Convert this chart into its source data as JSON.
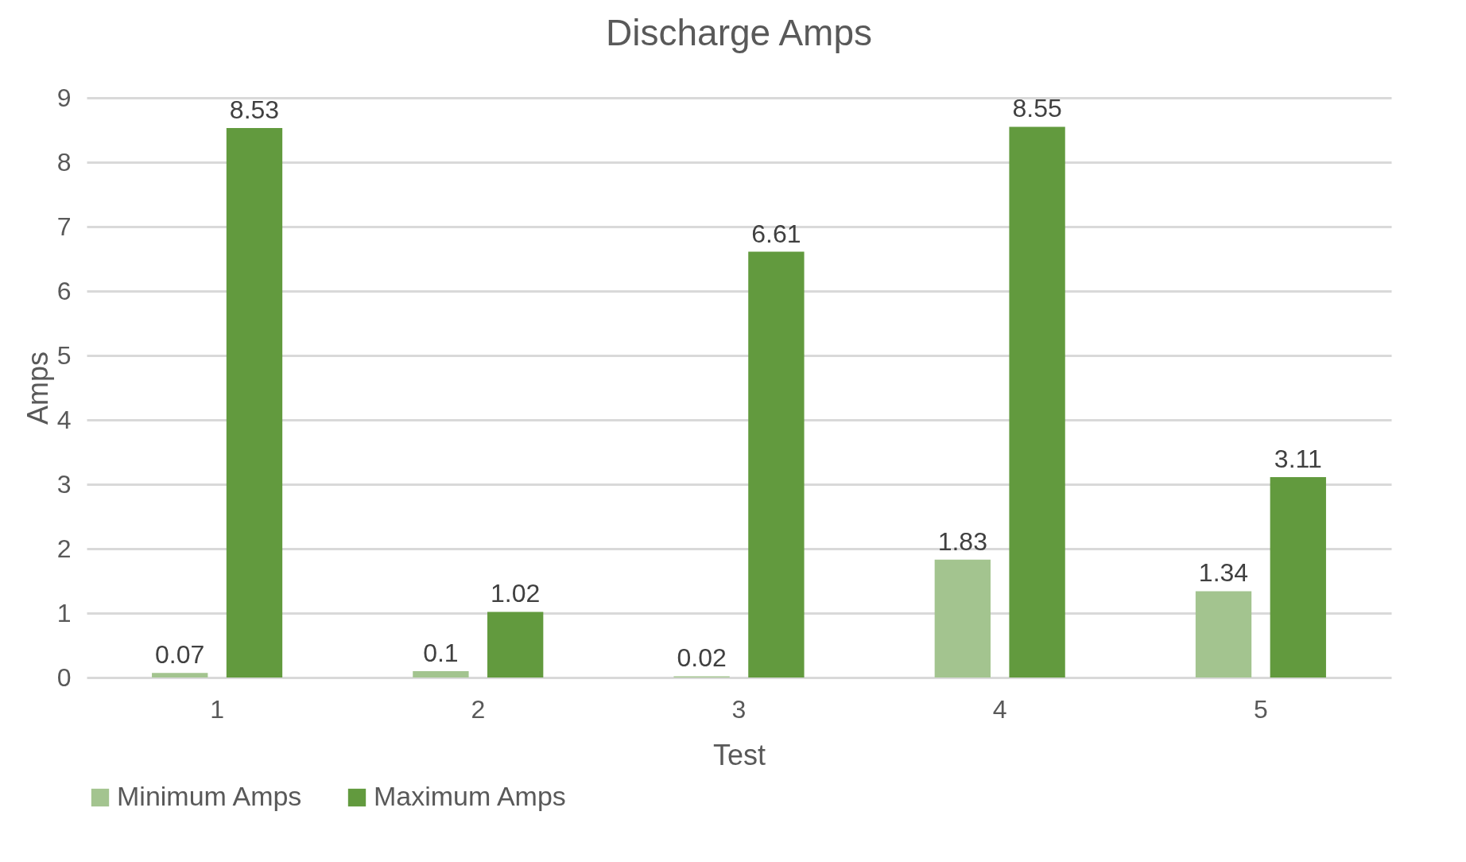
{
  "chart_data": {
    "type": "bar",
    "title": "Discharge Amps",
    "xlabel": "Test",
    "ylabel": "Amps",
    "categories": [
      "1",
      "2",
      "3",
      "4",
      "5"
    ],
    "series": [
      {
        "name": "Minimum Amps",
        "color": "#a3c48f",
        "values": [
          0.07,
          0.1,
          0.02,
          1.83,
          1.34
        ]
      },
      {
        "name": "Maximum Amps",
        "color": "#629a3e",
        "values": [
          8.53,
          1.02,
          6.61,
          8.55,
          3.11
        ]
      }
    ],
    "ylim": [
      0,
      9
    ],
    "yticks": [
      0,
      1,
      2,
      3,
      4,
      5,
      6,
      7,
      8,
      9
    ],
    "grid": "y",
    "legend": "bottom",
    "data_labels": true
  }
}
